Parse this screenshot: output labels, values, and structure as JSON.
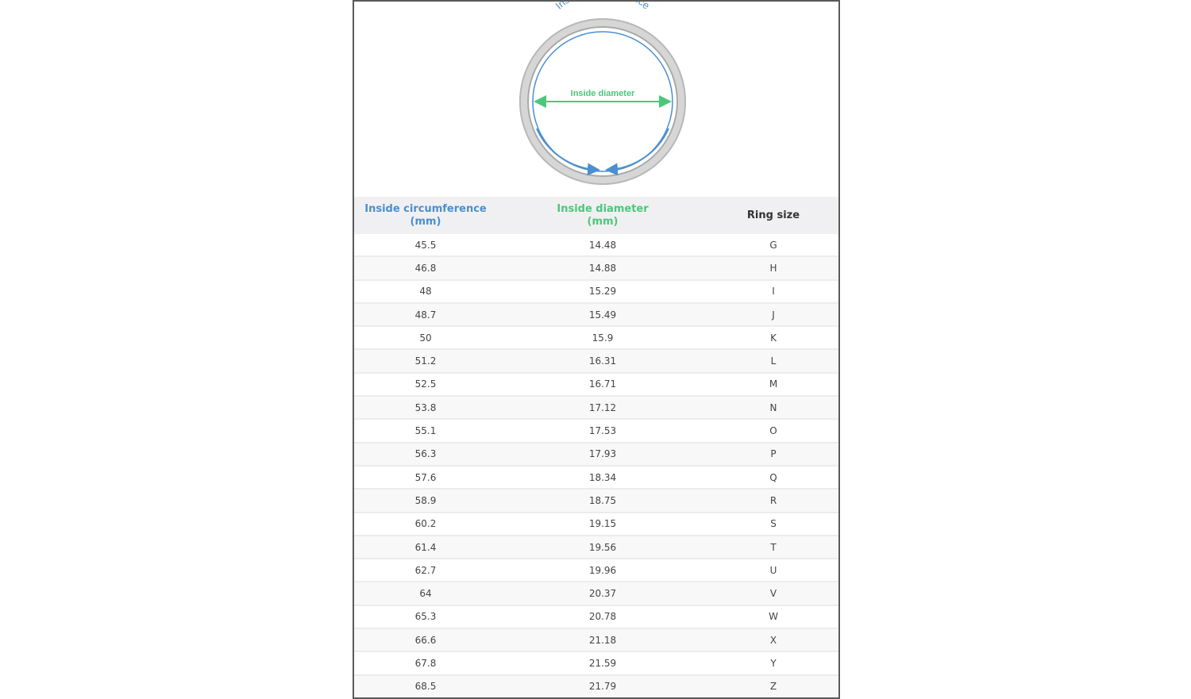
{
  "diagram": {
    "circumference_label": "Inside circumference",
    "diameter_label": "Inside diameter",
    "colors": {
      "circumference": "#4a8fd0",
      "diameter": "#4cc77a"
    }
  },
  "table": {
    "headers": [
      {
        "line1": "Inside circumference",
        "line2": "(mm)"
      },
      {
        "line1": "Inside diameter",
        "line2": "(mm)"
      },
      {
        "line1": "Ring size",
        "line2": ""
      }
    ],
    "rows": [
      [
        "45.5",
        "14.48",
        "G"
      ],
      [
        "46.8",
        "14.88",
        "H"
      ],
      [
        "48",
        "15.29",
        "I"
      ],
      [
        "48.7",
        "15.49",
        "J"
      ],
      [
        "50",
        "15.9",
        "K"
      ],
      [
        "51.2",
        "16.31",
        "L"
      ],
      [
        "52.5",
        "16.71",
        "M"
      ],
      [
        "53.8",
        "17.12",
        "N"
      ],
      [
        "55.1",
        "17.53",
        "O"
      ],
      [
        "56.3",
        "17.93",
        "P"
      ],
      [
        "57.6",
        "18.34",
        "Q"
      ],
      [
        "58.9",
        "18.75",
        "R"
      ],
      [
        "60.2",
        "19.15",
        "S"
      ],
      [
        "61.4",
        "19.56",
        "T"
      ],
      [
        "62.7",
        "19.96",
        "U"
      ],
      [
        "64",
        "20.37",
        "V"
      ],
      [
        "65.3",
        "20.78",
        "W"
      ],
      [
        "66.6",
        "21.18",
        "X"
      ],
      [
        "67.8",
        "21.59",
        "Y"
      ],
      [
        "68.5",
        "21.79",
        "Z"
      ]
    ]
  }
}
